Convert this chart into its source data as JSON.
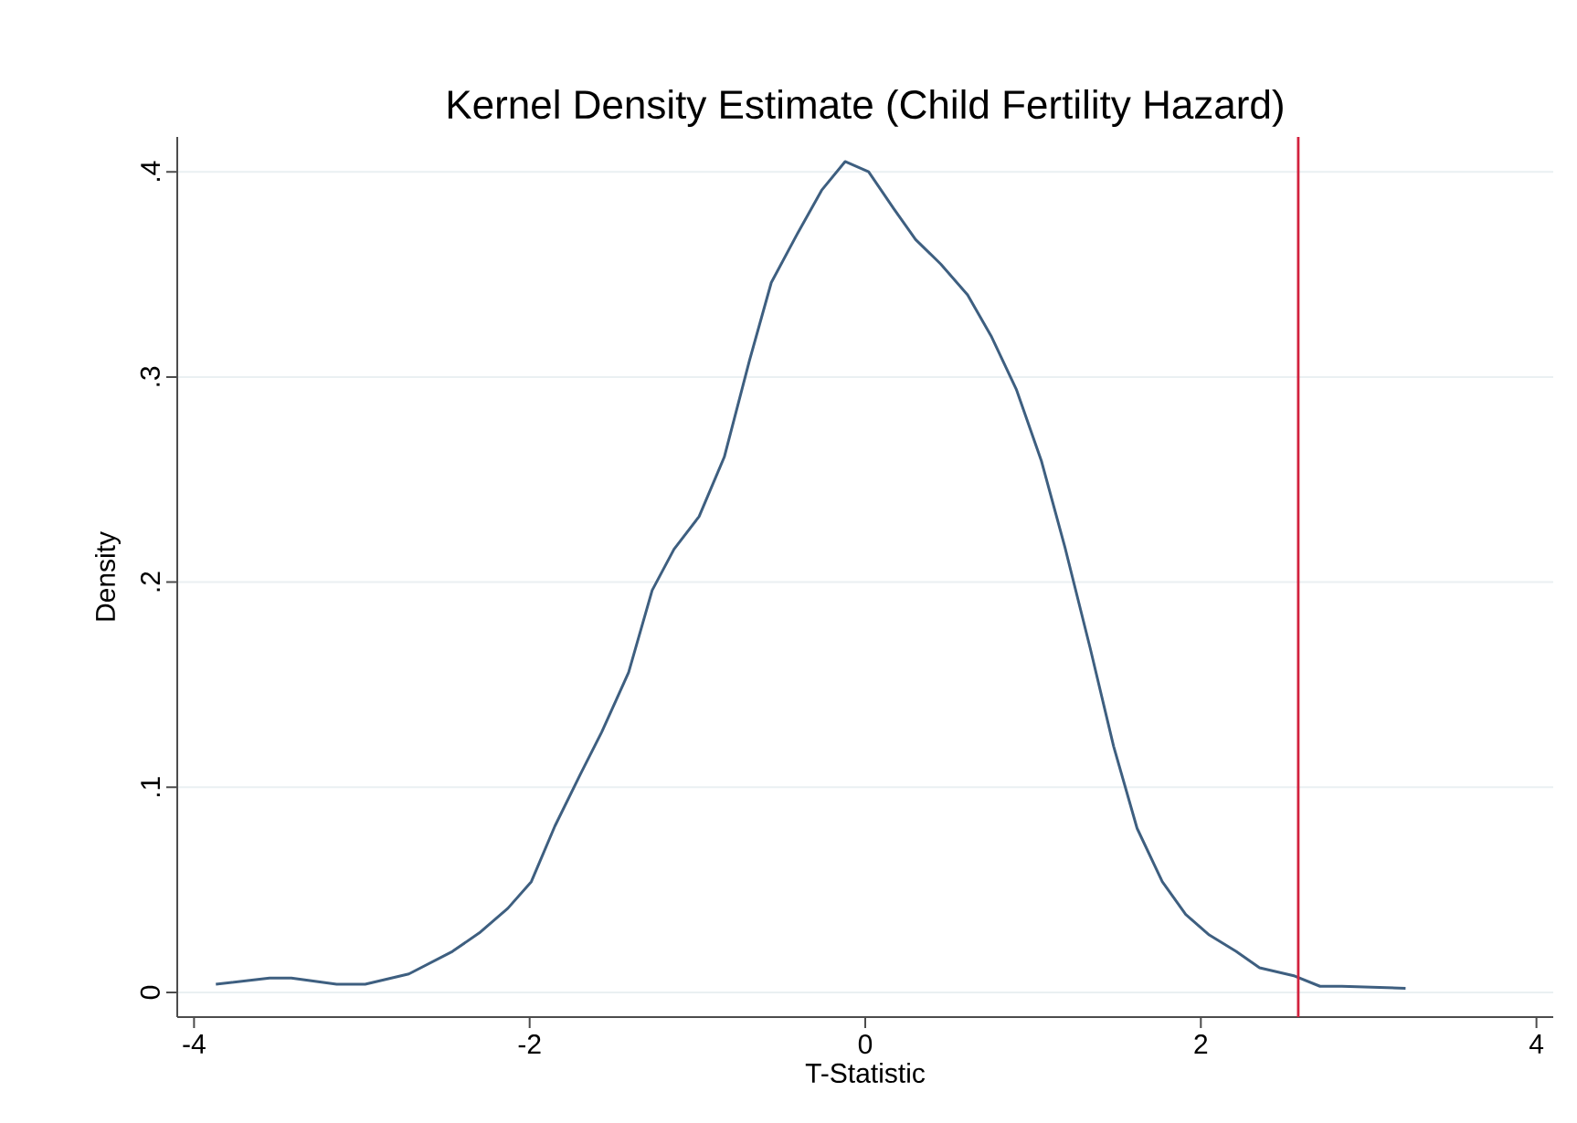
{
  "chart_data": {
    "type": "line",
    "title": "Kernel Density Estimate (Child Fertility Hazard)",
    "xlabel": "T-Statistic",
    "ylabel": "Density",
    "xlim": [
      -4.1,
      4.1
    ],
    "ylim": [
      -0.012,
      0.417
    ],
    "xticks": [
      -4,
      -2,
      0,
      2,
      4
    ],
    "yticks": [
      {
        "value": 0,
        "label": "0"
      },
      {
        "value": 0.1,
        "label": ".1"
      },
      {
        "value": 0.2,
        "label": ".2"
      },
      {
        "value": 0.3,
        "label": ".3"
      },
      {
        "value": 0.4,
        "label": ".4"
      }
    ],
    "grid": "y",
    "marker": "none",
    "line_style": "solid",
    "series": [
      {
        "color": "#3e5f80",
        "x": [
          -3.87,
          -3.55,
          -3.42,
          -3.15,
          -2.98,
          -2.72,
          -2.46,
          -2.3,
          -2.13,
          -1.99,
          -1.85,
          -1.7,
          -1.57,
          -1.41,
          -1.27,
          -1.14,
          -0.99,
          -0.84,
          -0.69,
          -0.56,
          -0.41,
          -0.26,
          -0.12,
          0.02,
          0.17,
          0.3,
          0.45,
          0.61,
          0.75,
          0.9,
          1.05,
          1.19,
          1.34,
          1.48,
          1.62,
          1.77,
          1.91,
          2.05,
          2.21,
          2.35,
          2.56,
          2.71,
          2.84,
          3.22
        ],
        "values": [
          0.004,
          0.007,
          0.007,
          0.004,
          0.004,
          0.009,
          0.02,
          0.029,
          0.041,
          0.054,
          0.081,
          0.106,
          0.127,
          0.156,
          0.196,
          0.216,
          0.232,
          0.261,
          0.308,
          0.346,
          0.369,
          0.391,
          0.405,
          0.4,
          0.382,
          0.367,
          0.355,
          0.34,
          0.32,
          0.294,
          0.259,
          0.217,
          0.168,
          0.12,
          0.08,
          0.054,
          0.038,
          0.028,
          0.02,
          0.012,
          0.008,
          0.003,
          0.003,
          0.002
        ]
      }
    ],
    "ref_lines": [
      {
        "axis": "x",
        "value": 2.58,
        "color": "#d2223e",
        "line_style": "solid"
      }
    ]
  }
}
